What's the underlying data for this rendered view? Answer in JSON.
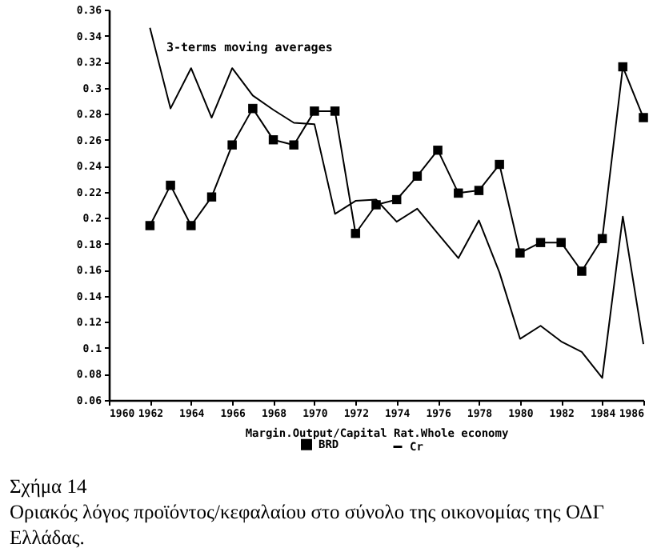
{
  "chart_data": {
    "type": "line",
    "xlabel": "Margin.Output/Capital Rat.Whole economy",
    "x": [
      1962,
      1963,
      1964,
      1965,
      1966,
      1967,
      1968,
      1969,
      1970,
      1971,
      1972,
      1973,
      1974,
      1975,
      1976,
      1977,
      1978,
      1979,
      1980,
      1981,
      1982,
      1983,
      1984,
      1985,
      1986
    ],
    "series": [
      {
        "name": "BRD",
        "color": "#000000",
        "marker": "square",
        "values": [
          0.194,
          0.225,
          0.194,
          0.216,
          0.256,
          0.284,
          0.26,
          0.256,
          0.282,
          0.282,
          0.188,
          0.21,
          0.214,
          0.232,
          0.252,
          0.219,
          0.221,
          0.241,
          0.173,
          0.181,
          0.181,
          0.159,
          0.184,
          0.316,
          0.277
        ]
      },
      {
        "name": "Cr",
        "color": "#000000",
        "marker": "none",
        "values": [
          0.346,
          0.284,
          0.315,
          0.277,
          0.315,
          0.294,
          0.283,
          0.273,
          0.272,
          0.203,
          0.213,
          0.214,
          0.197,
          0.207,
          0.188,
          0.169,
          0.198,
          0.158,
          0.107,
          0.117,
          0.105,
          0.097,
          0.077,
          0.201,
          0.103
        ]
      }
    ],
    "xlim": [
      1960,
      1986
    ],
    "xticks": [
      1960,
      1962,
      1964,
      1966,
      1968,
      1970,
      1972,
      1974,
      1976,
      1978,
      1980,
      1982,
      1984,
      1986
    ],
    "ylim": [
      0.06,
      0.36
    ],
    "yticks": [
      0.06,
      0.08,
      0.1,
      0.12,
      0.14,
      0.16,
      0.18,
      0.2,
      0.22,
      0.24,
      0.26,
      0.28,
      0.3,
      0.32,
      0.34,
      0.36
    ],
    "legend": "bottom",
    "grid": false,
    "line_style": "solid",
    "annotations": [
      "3-terms moving averages",
      "Σχήμα 14",
      "Οριακός λόγος προϊόντος/κεφαλαίου στο σύνολο της οικονομίας της ΟΔΓ Ελλάδας."
    ]
  }
}
